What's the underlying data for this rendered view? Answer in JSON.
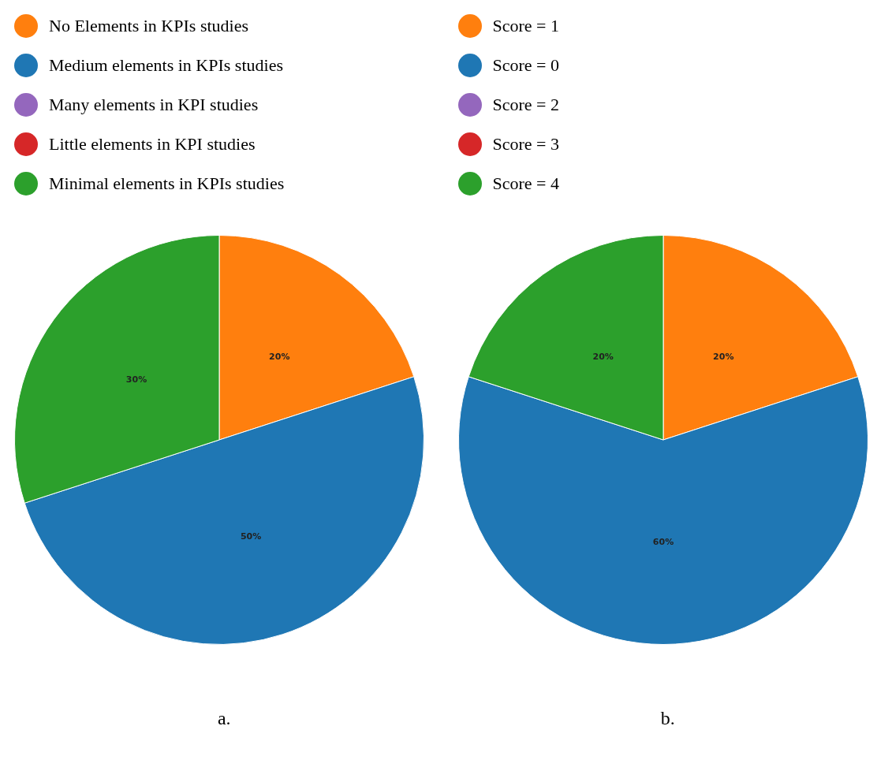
{
  "chart_data": [
    {
      "type": "pie",
      "categories": [
        "No Elements in KPIs studies",
        "Medium elements in KPIs studies",
        "Many elements in KPI studies",
        "Little elements in KPI studies",
        "Minimal elements in KPIs studies"
      ],
      "values": [
        20,
        50,
        0,
        0,
        30
      ],
      "colors": [
        "#ff7f0e",
        "#1f77b4",
        "#9467bd",
        "#d62728",
        "#2ca02c"
      ],
      "value_labels": [
        "20%",
        "50%",
        null,
        null,
        "30%"
      ],
      "legend": "top",
      "annotations": [
        "a."
      ]
    },
    {
      "type": "pie",
      "categories": [
        "Score = 1",
        "Score = 0",
        "Score = 2",
        "Score = 3",
        "Score = 4"
      ],
      "values": [
        20,
        60,
        0,
        0,
        20
      ],
      "colors": [
        "#ff7f0e",
        "#1f77b4",
        "#9467bd",
        "#d62728",
        "#2ca02c"
      ],
      "value_labels": [
        "20%",
        "60%",
        null,
        null,
        "20%"
      ],
      "legend": "top",
      "annotations": [
        "b."
      ]
    }
  ]
}
